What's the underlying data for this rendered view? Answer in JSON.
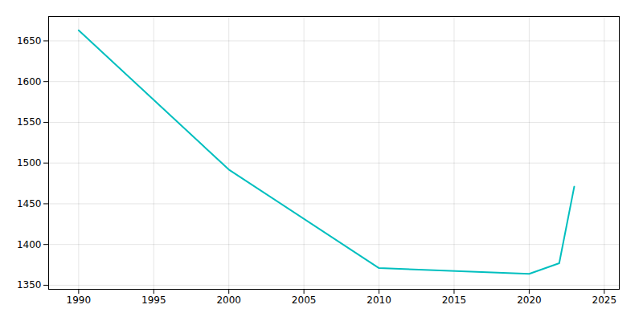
{
  "chart_data": {
    "type": "line",
    "x": [
      1990,
      2000,
      2010,
      2020,
      2022,
      2023
    ],
    "values": [
      1663,
      1492,
      1371,
      1364,
      1377,
      1471
    ],
    "color": "#00BFBF",
    "xlim": [
      1988,
      2026
    ],
    "ylim": [
      1345,
      1680
    ],
    "xticks": [
      1990,
      1995,
      2000,
      2005,
      2010,
      2015,
      2020,
      2025
    ],
    "yticks": [
      1350,
      1400,
      1450,
      1500,
      1550,
      1600,
      1650
    ],
    "grid": true
  }
}
